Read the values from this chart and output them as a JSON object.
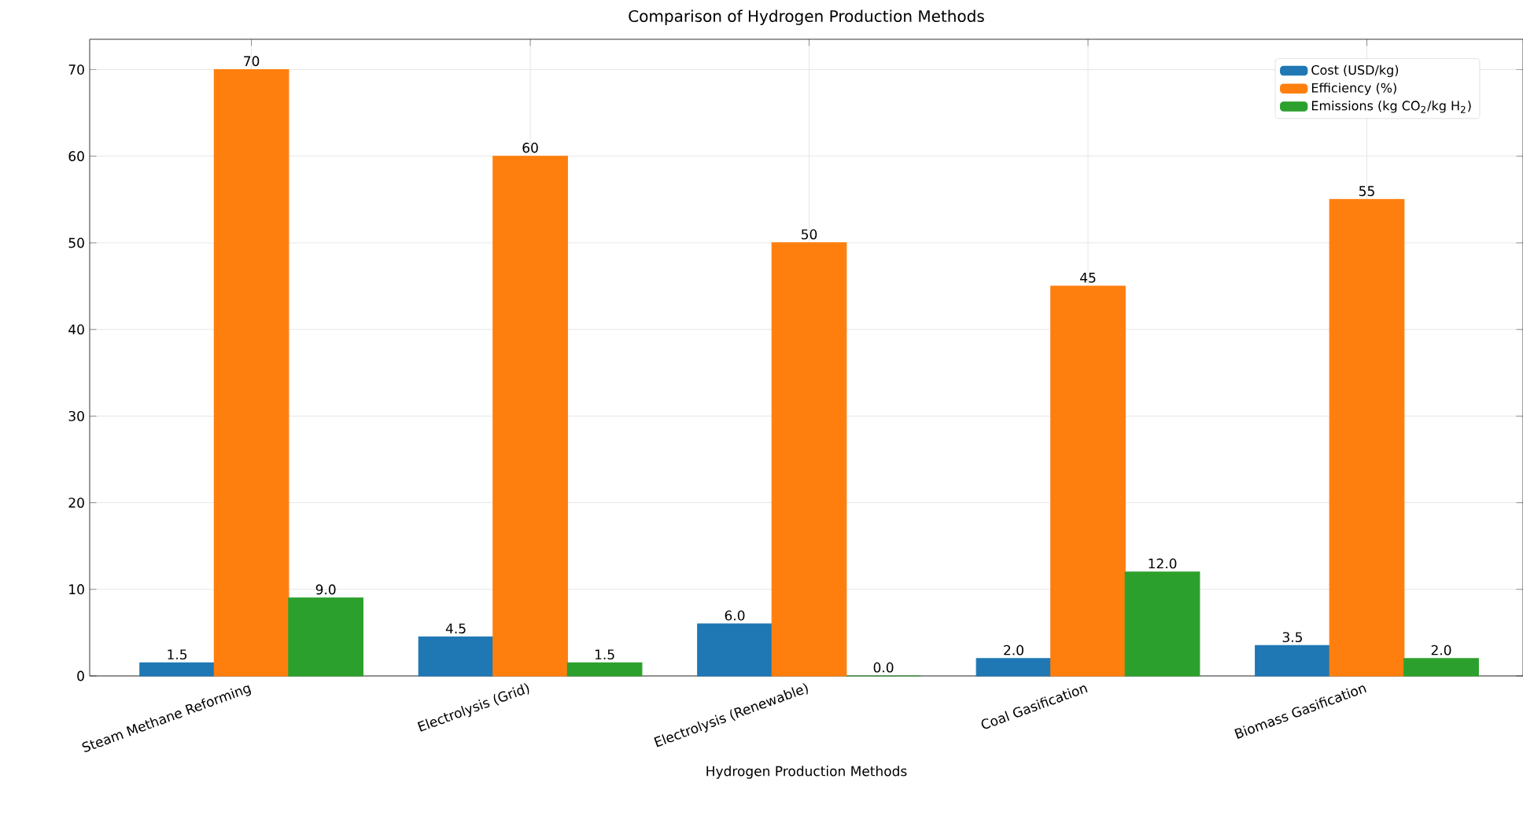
{
  "chart_data": {
    "type": "bar",
    "title": "Comparison of Hydrogen Production Methods",
    "xlabel": "Hydrogen Production Methods",
    "categories": [
      "Steam Methane Reforming",
      "Electrolysis (Grid)",
      "Electrolysis (Renewable)",
      "Coal Gasification",
      "Biomass Gasification"
    ],
    "series": [
      {
        "name": "Cost (USD/kg)",
        "color": "#1f77b4",
        "values": [
          1.5,
          4.5,
          6.0,
          2.0,
          3.5
        ],
        "value_labels": [
          "1.5",
          "4.5",
          "6.0",
          "2.0",
          "3.5"
        ]
      },
      {
        "name": "Efficiency (%)",
        "color": "#ff7f0e",
        "values": [
          70,
          60,
          50,
          45,
          55
        ],
        "value_labels": [
          "70",
          "60",
          "50",
          "45",
          "55"
        ]
      },
      {
        "name": "Emissions (kg CO$_{2}$/kg H$_{2}$)",
        "color": "#2ca02c",
        "values": [
          9.0,
          1.5,
          0.0,
          12.0,
          2.0
        ],
        "value_labels": [
          "9.0",
          "1.5",
          "0.0",
          "12.0",
          "2.0"
        ]
      }
    ],
    "ylim": [
      0,
      73.5
    ],
    "yticks": [
      0,
      10,
      20,
      30,
      40,
      50,
      60,
      70
    ],
    "grid": true,
    "legend": "top right"
  }
}
